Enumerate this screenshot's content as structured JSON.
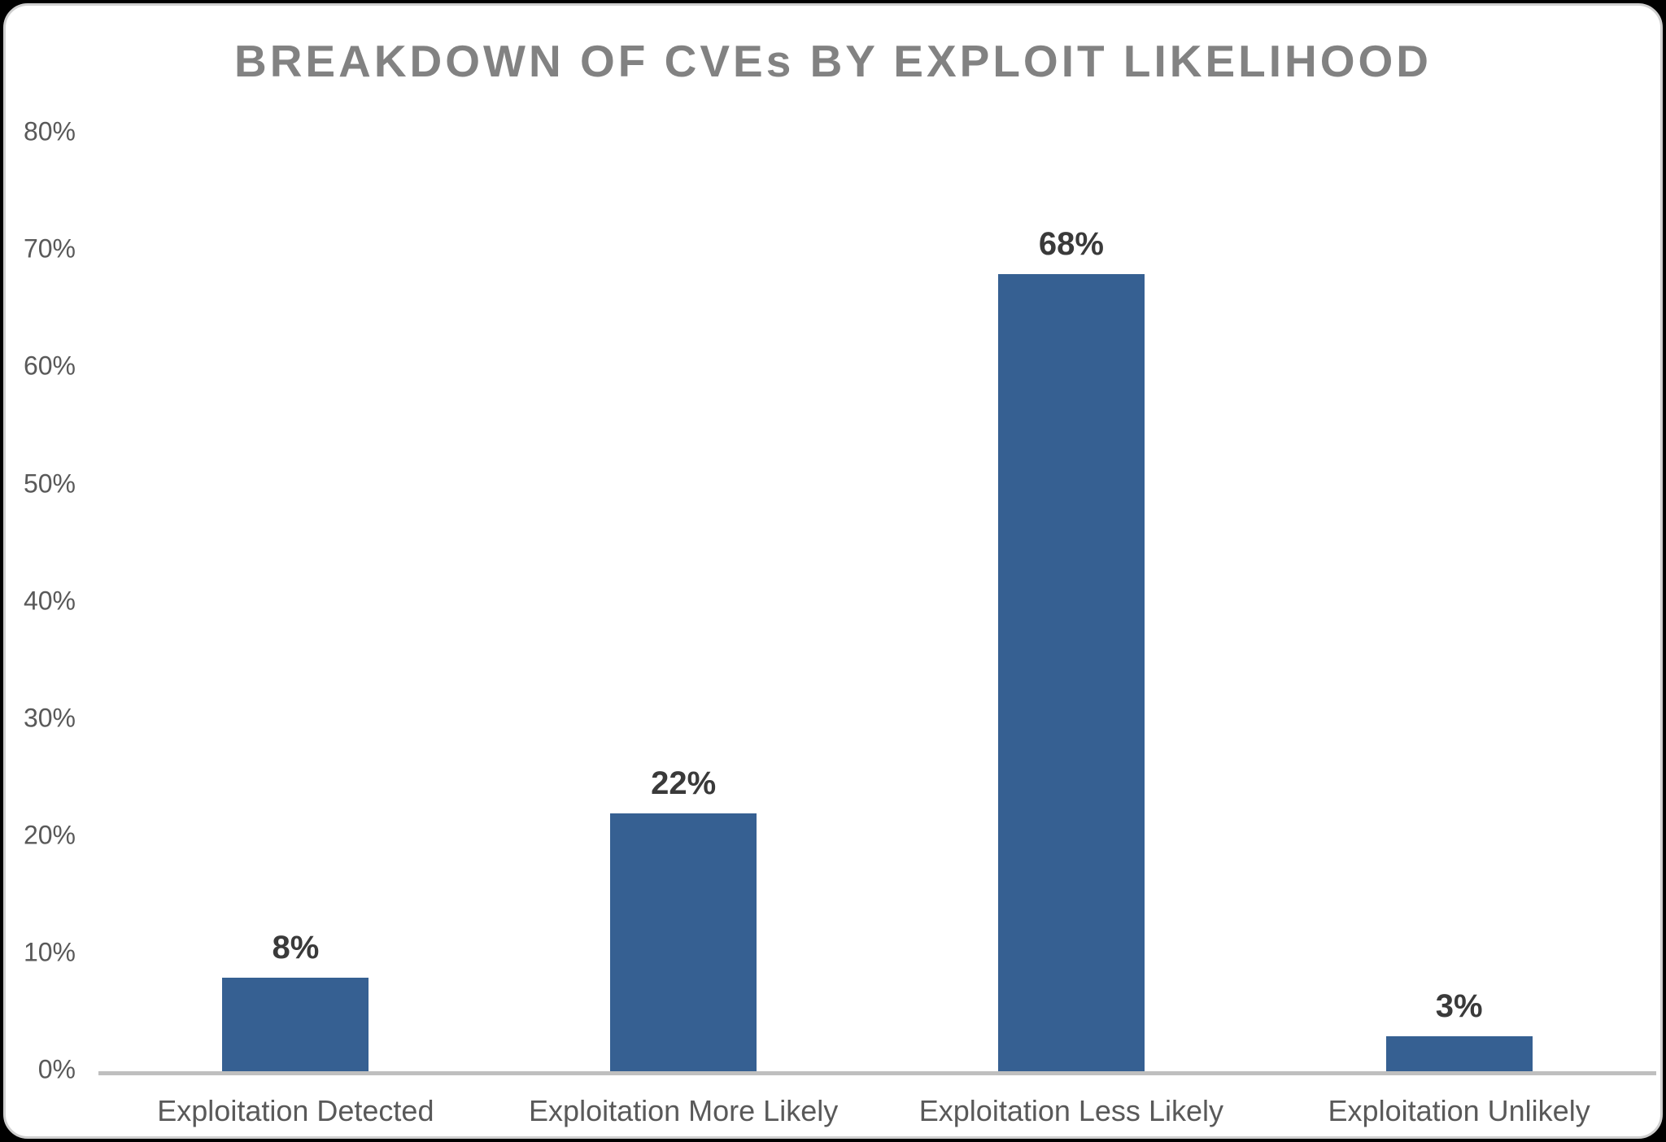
{
  "chart_data": {
    "type": "bar",
    "title": "BREAKDOWN OF CVEs BY EXPLOIT LIKELIHOOD",
    "categories": [
      "Exploitation Detected",
      "Exploitation More Likely",
      "Exploitation Less Likely",
      "Exploitation Unlikely"
    ],
    "values": [
      8,
      22,
      68,
      3
    ],
    "value_labels": [
      "8%",
      "22%",
      "68%",
      "3%"
    ],
    "yticks": [
      {
        "value": 0,
        "label": "0%"
      },
      {
        "value": 10,
        "label": "10%"
      },
      {
        "value": 20,
        "label": "20%"
      },
      {
        "value": 30,
        "label": "30%"
      },
      {
        "value": 40,
        "label": "40%"
      },
      {
        "value": 50,
        "label": "50%"
      },
      {
        "value": 60,
        "label": "60%"
      },
      {
        "value": 70,
        "label": "70%"
      },
      {
        "value": 80,
        "label": "80%"
      }
    ],
    "xlabel": "",
    "ylabel": "",
    "ylim": [
      0,
      80
    ],
    "grid": false,
    "legend": false,
    "colors": {
      "bar": "#366092",
      "title_text": "#828282",
      "axis_text": "#595959",
      "value_label_text": "#3a3a3a",
      "axis_line": "#bfbfbf",
      "surface": "#ffffff",
      "surface_border": "#cfcfcf",
      "outside": "#000000"
    }
  }
}
